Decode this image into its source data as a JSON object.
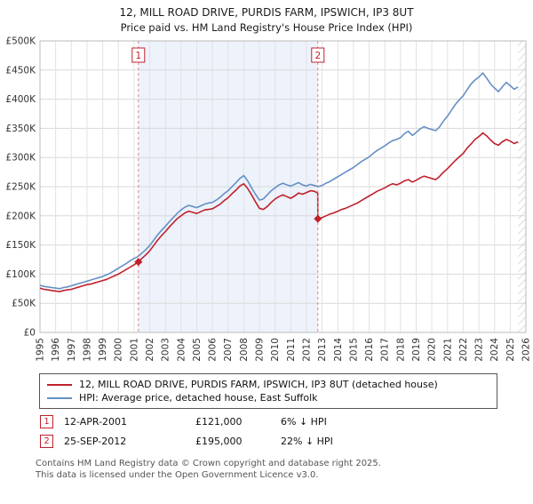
{
  "title": "12, MILL ROAD DRIVE, PURDIS FARM, IPSWICH, IP3 8UT",
  "subtitle": "Price paid vs. HM Land Registry's House Price Index (HPI)",
  "chart_data": {
    "type": "line",
    "x_range": [
      1995,
      2026
    ],
    "y_range": [
      0,
      500
    ],
    "y_unit": "GBP thousands",
    "x_ticks": [
      1995,
      1996,
      1997,
      1998,
      1999,
      2000,
      2001,
      2002,
      2003,
      2004,
      2005,
      2006,
      2007,
      2008,
      2009,
      2010,
      2011,
      2012,
      2013,
      2014,
      2015,
      2016,
      2017,
      2018,
      2019,
      2020,
      2021,
      2022,
      2023,
      2024,
      2025,
      2026
    ],
    "y_ticks": [
      [
        0,
        "£0"
      ],
      [
        50,
        "£50K"
      ],
      [
        100,
        "£100K"
      ],
      [
        150,
        "£150K"
      ],
      [
        200,
        "£200K"
      ],
      [
        250,
        "£250K"
      ],
      [
        300,
        "£300K"
      ],
      [
        350,
        "£350K"
      ],
      [
        400,
        "£400K"
      ],
      [
        450,
        "£450K"
      ],
      [
        500,
        "£500K"
      ]
    ],
    "grid": true,
    "legend_position": "bottom",
    "colors": {
      "red": "#c0202c",
      "blue": "#6590c6",
      "grid": "#d8d8d8",
      "grid_v": "#e2e2e2",
      "shade": "#edf2fb",
      "hatch": "#c8c8c8",
      "dashed": "#d9808c"
    },
    "shaded_region": [
      2001.28,
      2012.73
    ],
    "hatched_region": [
      2025.5,
      2026
    ],
    "markers": [
      {
        "label": "1",
        "x": 2001.28,
        "y": 121,
        "date": "12-APR-2001",
        "price_gbp": 121000
      },
      {
        "label": "2",
        "x": 2012.73,
        "y": 195,
        "date": "25-SEP-2012",
        "price_gbp": 195000
      }
    ],
    "series": [
      {
        "name": "12, MILL ROAD DRIVE, PURDIS FARM, IPSWICH, IP3 8UT (detached house)",
        "color": "#c0202c",
        "points": [
          [
            1995,
            76
          ],
          [
            1995.25,
            74
          ],
          [
            1995.5,
            73
          ],
          [
            1995.75,
            72
          ],
          [
            1996,
            71
          ],
          [
            1996.25,
            70
          ],
          [
            1996.5,
            72
          ],
          [
            1996.75,
            73
          ],
          [
            1997,
            74
          ],
          [
            1997.25,
            76
          ],
          [
            1997.5,
            78
          ],
          [
            1997.75,
            80
          ],
          [
            1998,
            82
          ],
          [
            1998.25,
            83
          ],
          [
            1998.5,
            85
          ],
          [
            1998.75,
            87
          ],
          [
            1999,
            89
          ],
          [
            1999.25,
            91
          ],
          [
            1999.5,
            94
          ],
          [
            1999.75,
            97
          ],
          [
            2000,
            100
          ],
          [
            2000.25,
            104
          ],
          [
            2000.5,
            108
          ],
          [
            2000.75,
            112
          ],
          [
            2001,
            116
          ],
          [
            2001.28,
            121
          ],
          [
            2001.5,
            127
          ],
          [
            2001.75,
            133
          ],
          [
            2002,
            140
          ],
          [
            2002.25,
            149
          ],
          [
            2002.5,
            158
          ],
          [
            2002.75,
            166
          ],
          [
            2003,
            173
          ],
          [
            2003.25,
            181
          ],
          [
            2003.5,
            188
          ],
          [
            2003.75,
            195
          ],
          [
            2004,
            200
          ],
          [
            2004.25,
            205
          ],
          [
            2004.5,
            208
          ],
          [
            2004.75,
            206
          ],
          [
            2005,
            204
          ],
          [
            2005.25,
            207
          ],
          [
            2005.5,
            210
          ],
          [
            2005.75,
            211
          ],
          [
            2006,
            212
          ],
          [
            2006.25,
            216
          ],
          [
            2006.5,
            220
          ],
          [
            2006.75,
            226
          ],
          [
            2007,
            231
          ],
          [
            2007.25,
            238
          ],
          [
            2007.5,
            244
          ],
          [
            2007.75,
            251
          ],
          [
            2008,
            255
          ],
          [
            2008.25,
            247
          ],
          [
            2008.5,
            236
          ],
          [
            2008.75,
            224
          ],
          [
            2009,
            213
          ],
          [
            2009.25,
            211
          ],
          [
            2009.5,
            216
          ],
          [
            2009.75,
            223
          ],
          [
            2010,
            229
          ],
          [
            2010.25,
            233
          ],
          [
            2010.5,
            236
          ],
          [
            2010.75,
            233
          ],
          [
            2011,
            230
          ],
          [
            2011.25,
            234
          ],
          [
            2011.5,
            239
          ],
          [
            2011.75,
            237
          ],
          [
            2012,
            240
          ],
          [
            2012.25,
            243
          ],
          [
            2012.5,
            242
          ],
          [
            2012.72,
            239
          ],
          [
            2012.73,
            195
          ],
          [
            2013,
            197
          ],
          [
            2013.25,
            200
          ],
          [
            2013.5,
            203
          ],
          [
            2013.75,
            205
          ],
          [
            2014,
            208
          ],
          [
            2014.25,
            211
          ],
          [
            2014.5,
            213
          ],
          [
            2014.75,
            216
          ],
          [
            2015,
            219
          ],
          [
            2015.25,
            222
          ],
          [
            2015.5,
            226
          ],
          [
            2015.75,
            230
          ],
          [
            2016,
            234
          ],
          [
            2016.25,
            238
          ],
          [
            2016.5,
            242
          ],
          [
            2016.75,
            245
          ],
          [
            2017,
            248
          ],
          [
            2017.25,
            252
          ],
          [
            2017.5,
            255
          ],
          [
            2017.75,
            253
          ],
          [
            2018,
            256
          ],
          [
            2018.25,
            260
          ],
          [
            2018.5,
            262
          ],
          [
            2018.75,
            258
          ],
          [
            2019,
            261
          ],
          [
            2019.25,
            265
          ],
          [
            2019.5,
            268
          ],
          [
            2019.75,
            266
          ],
          [
            2020,
            264
          ],
          [
            2020.25,
            262
          ],
          [
            2020.5,
            268
          ],
          [
            2020.75,
            275
          ],
          [
            2021,
            281
          ],
          [
            2021.25,
            288
          ],
          [
            2021.5,
            295
          ],
          [
            2021.75,
            301
          ],
          [
            2022,
            307
          ],
          [
            2022.25,
            316
          ],
          [
            2022.5,
            323
          ],
          [
            2022.75,
            331
          ],
          [
            2023,
            336
          ],
          [
            2023.25,
            342
          ],
          [
            2023.5,
            337
          ],
          [
            2023.75,
            330
          ],
          [
            2024,
            324
          ],
          [
            2024.25,
            321
          ],
          [
            2024.5,
            327
          ],
          [
            2024.75,
            331
          ],
          [
            2025,
            328
          ],
          [
            2025.25,
            324
          ],
          [
            2025.5,
            327
          ]
        ]
      },
      {
        "name": "HPI: Average price, detached house, East Suffolk",
        "color": "#6590c6",
        "points": [
          [
            1995,
            81
          ],
          [
            1995.25,
            79
          ],
          [
            1995.5,
            78
          ],
          [
            1995.75,
            77
          ],
          [
            1996,
            76
          ],
          [
            1996.25,
            75
          ],
          [
            1996.5,
            77
          ],
          [
            1996.75,
            78
          ],
          [
            1997,
            80
          ],
          [
            1997.25,
            82
          ],
          [
            1997.5,
            84
          ],
          [
            1997.75,
            86
          ],
          [
            1998,
            88
          ],
          [
            1998.25,
            90
          ],
          [
            1998.5,
            92
          ],
          [
            1998.75,
            94
          ],
          [
            1999,
            96
          ],
          [
            1999.25,
            99
          ],
          [
            1999.5,
            102
          ],
          [
            1999.75,
            106
          ],
          [
            2000,
            110
          ],
          [
            2000.25,
            114
          ],
          [
            2000.5,
            118
          ],
          [
            2000.75,
            123
          ],
          [
            2001,
            127
          ],
          [
            2001.25,
            130
          ],
          [
            2001.5,
            136
          ],
          [
            2001.75,
            142
          ],
          [
            2002,
            149
          ],
          [
            2002.25,
            158
          ],
          [
            2002.5,
            167
          ],
          [
            2002.75,
            175
          ],
          [
            2003,
            182
          ],
          [
            2003.25,
            190
          ],
          [
            2003.5,
            197
          ],
          [
            2003.75,
            204
          ],
          [
            2004,
            210
          ],
          [
            2004.25,
            215
          ],
          [
            2004.5,
            218
          ],
          [
            2004.75,
            216
          ],
          [
            2005,
            214
          ],
          [
            2005.25,
            217
          ],
          [
            2005.5,
            220
          ],
          [
            2005.75,
            222
          ],
          [
            2006,
            223
          ],
          [
            2006.25,
            227
          ],
          [
            2006.5,
            232
          ],
          [
            2006.75,
            238
          ],
          [
            2007,
            243
          ],
          [
            2007.25,
            250
          ],
          [
            2007.5,
            257
          ],
          [
            2007.75,
            264
          ],
          [
            2008,
            269
          ],
          [
            2008.25,
            260
          ],
          [
            2008.5,
            248
          ],
          [
            2008.75,
            237
          ],
          [
            2009,
            227
          ],
          [
            2009.25,
            229
          ],
          [
            2009.5,
            236
          ],
          [
            2009.75,
            243
          ],
          [
            2010,
            248
          ],
          [
            2010.25,
            253
          ],
          [
            2010.5,
            256
          ],
          [
            2010.75,
            253
          ],
          [
            2011,
            251
          ],
          [
            2011.25,
            254
          ],
          [
            2011.5,
            257
          ],
          [
            2011.75,
            253
          ],
          [
            2012,
            251
          ],
          [
            2012.25,
            254
          ],
          [
            2012.5,
            252
          ],
          [
            2012.75,
            250
          ],
          [
            2013,
            252
          ],
          [
            2013.25,
            256
          ],
          [
            2013.5,
            259
          ],
          [
            2013.75,
            263
          ],
          [
            2014,
            267
          ],
          [
            2014.25,
            271
          ],
          [
            2014.5,
            275
          ],
          [
            2014.75,
            279
          ],
          [
            2015,
            283
          ],
          [
            2015.25,
            288
          ],
          [
            2015.5,
            293
          ],
          [
            2015.75,
            297
          ],
          [
            2016,
            301
          ],
          [
            2016.25,
            307
          ],
          [
            2016.5,
            312
          ],
          [
            2016.75,
            316
          ],
          [
            2017,
            320
          ],
          [
            2017.25,
            325
          ],
          [
            2017.5,
            329
          ],
          [
            2017.75,
            331
          ],
          [
            2018,
            334
          ],
          [
            2018.25,
            341
          ],
          [
            2018.5,
            345
          ],
          [
            2018.75,
            338
          ],
          [
            2019,
            343
          ],
          [
            2019.25,
            349
          ],
          [
            2019.5,
            353
          ],
          [
            2019.75,
            350
          ],
          [
            2020,
            348
          ],
          [
            2020.25,
            346
          ],
          [
            2020.5,
            353
          ],
          [
            2020.75,
            363
          ],
          [
            2021,
            371
          ],
          [
            2021.25,
            381
          ],
          [
            2021.5,
            391
          ],
          [
            2021.75,
            399
          ],
          [
            2022,
            406
          ],
          [
            2022.25,
            416
          ],
          [
            2022.5,
            426
          ],
          [
            2022.75,
            433
          ],
          [
            2023,
            438
          ],
          [
            2023.25,
            445
          ],
          [
            2023.5,
            436
          ],
          [
            2023.75,
            426
          ],
          [
            2024,
            419
          ],
          [
            2024.25,
            413
          ],
          [
            2024.5,
            421
          ],
          [
            2024.75,
            429
          ],
          [
            2025,
            423
          ],
          [
            2025.25,
            417
          ],
          [
            2025.5,
            421
          ]
        ]
      }
    ]
  },
  "legend": [
    {
      "label": "12, MILL ROAD DRIVE, PURDIS FARM, IPSWICH, IP3 8UT (detached house)"
    },
    {
      "label": "HPI: Average price, detached house, East Suffolk"
    }
  ],
  "annotations": [
    {
      "num": "1",
      "date": "12-APR-2001",
      "price": "£121,000",
      "delta": "6% ↓ HPI"
    },
    {
      "num": "2",
      "date": "25-SEP-2012",
      "price": "£195,000",
      "delta": "22% ↓ HPI"
    }
  ],
  "footer": {
    "line1": "Contains HM Land Registry data © Crown copyright and database right 2025.",
    "line2": "This data is licensed under the Open Government Licence v3.0."
  }
}
